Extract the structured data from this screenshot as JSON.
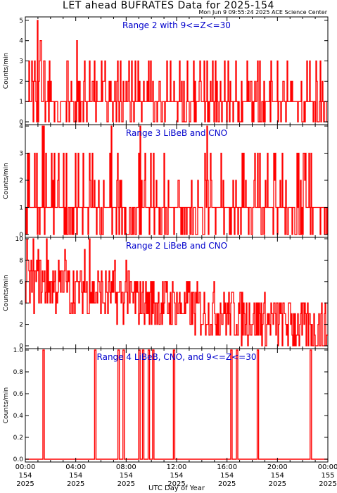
{
  "title": "LET ahead BUFRATES Data for 2025-154",
  "timestamp": "Mon Jun  9 09:55:24 2025 ACE Science Center",
  "xlabel": "UTC Day of Year",
  "colors": {
    "trace": "#ff0000",
    "panel_title": "#0000cc",
    "axes": "#000000",
    "background": "#ffffff"
  },
  "chart_data": [
    {
      "type": "line",
      "title": "Range 2 with 9<=Z<=30",
      "ylabel": "Counts/min",
      "ylim": [
        0,
        5.1
      ],
      "yticks": [
        "0",
        "1",
        "2",
        "3",
        "4",
        "5"
      ],
      "typical_values": [
        1,
        0,
        2,
        1,
        0,
        1,
        3,
        1,
        0,
        2
      ],
      "peaks": [
        [
          0.95,
          5
        ],
        [
          1.2,
          4
        ],
        [
          4.1,
          4
        ],
        [
          1.1,
          3
        ],
        [
          1.5,
          3
        ],
        [
          14.2,
          3
        ],
        [
          14.4,
          3
        ],
        [
          3.3,
          3
        ],
        [
          8.7,
          3
        ]
      ]
    },
    {
      "type": "line",
      "title": "Range 3 LiBeB and CNO",
      "ylabel": "Counts/min",
      "ylim": [
        0,
        4
      ],
      "yticks": [
        "0",
        "1",
        "2",
        "3",
        "4"
      ],
      "typical_values": [
        1,
        0,
        1,
        2,
        0,
        1,
        1,
        0,
        3,
        1
      ],
      "peaks": [
        [
          1.35,
          4
        ],
        [
          1.45,
          4
        ],
        [
          6.8,
          4
        ],
        [
          9.1,
          4
        ],
        [
          14.4,
          4
        ],
        [
          3.0,
          3
        ],
        [
          4.6,
          3
        ],
        [
          0.9,
          3
        ]
      ]
    },
    {
      "type": "line",
      "title": "Range 2 LiBeB and CNO",
      "ylabel": "Counts/min",
      "ylim": [
        0,
        10
      ],
      "yticks": [
        "0",
        "2",
        "4",
        "6",
        "8",
        "10"
      ],
      "typical_values": [
        5,
        3,
        6,
        4,
        2,
        7,
        4,
        3,
        5,
        2
      ],
      "peaks": [
        [
          0.1,
          10
        ],
        [
          0.6,
          10
        ],
        [
          1.0,
          9
        ],
        [
          1.7,
          10
        ],
        [
          3.1,
          9
        ],
        [
          4.7,
          9
        ],
        [
          5.1,
          10
        ],
        [
          7.1,
          8
        ],
        [
          8.0,
          8
        ]
      ]
    },
    {
      "type": "line",
      "title": "Range 4 LiBeB, CNO, and 9<=Z<=30",
      "ylabel": "Counts/min",
      "ylim": [
        0,
        1
      ],
      "yticks": [
        "0.0",
        "0.2",
        "0.4",
        "0.6",
        "0.8",
        "1.0"
      ],
      "spikes_hours": [
        1.45,
        5.55,
        7.4,
        7.8,
        9.05,
        9.35,
        9.8,
        10.15,
        11.8,
        16.35,
        16.8,
        18.45,
        22.65
      ]
    }
  ],
  "x_axis": {
    "range_hours": [
      0,
      24
    ],
    "ticks": [
      {
        "time": "00:00",
        "doy": "154",
        "year": "2025"
      },
      {
        "time": "04:00",
        "doy": "154",
        "year": "2025"
      },
      {
        "time": "08:00",
        "doy": "154",
        "year": "2025"
      },
      {
        "time": "12:00",
        "doy": "154",
        "year": "2025"
      },
      {
        "time": "16:00",
        "doy": "154",
        "year": "2025"
      },
      {
        "time": "20:00",
        "doy": "154",
        "year": "2025"
      },
      {
        "time": "00:00",
        "doy": "155",
        "year": "2025"
      }
    ]
  }
}
